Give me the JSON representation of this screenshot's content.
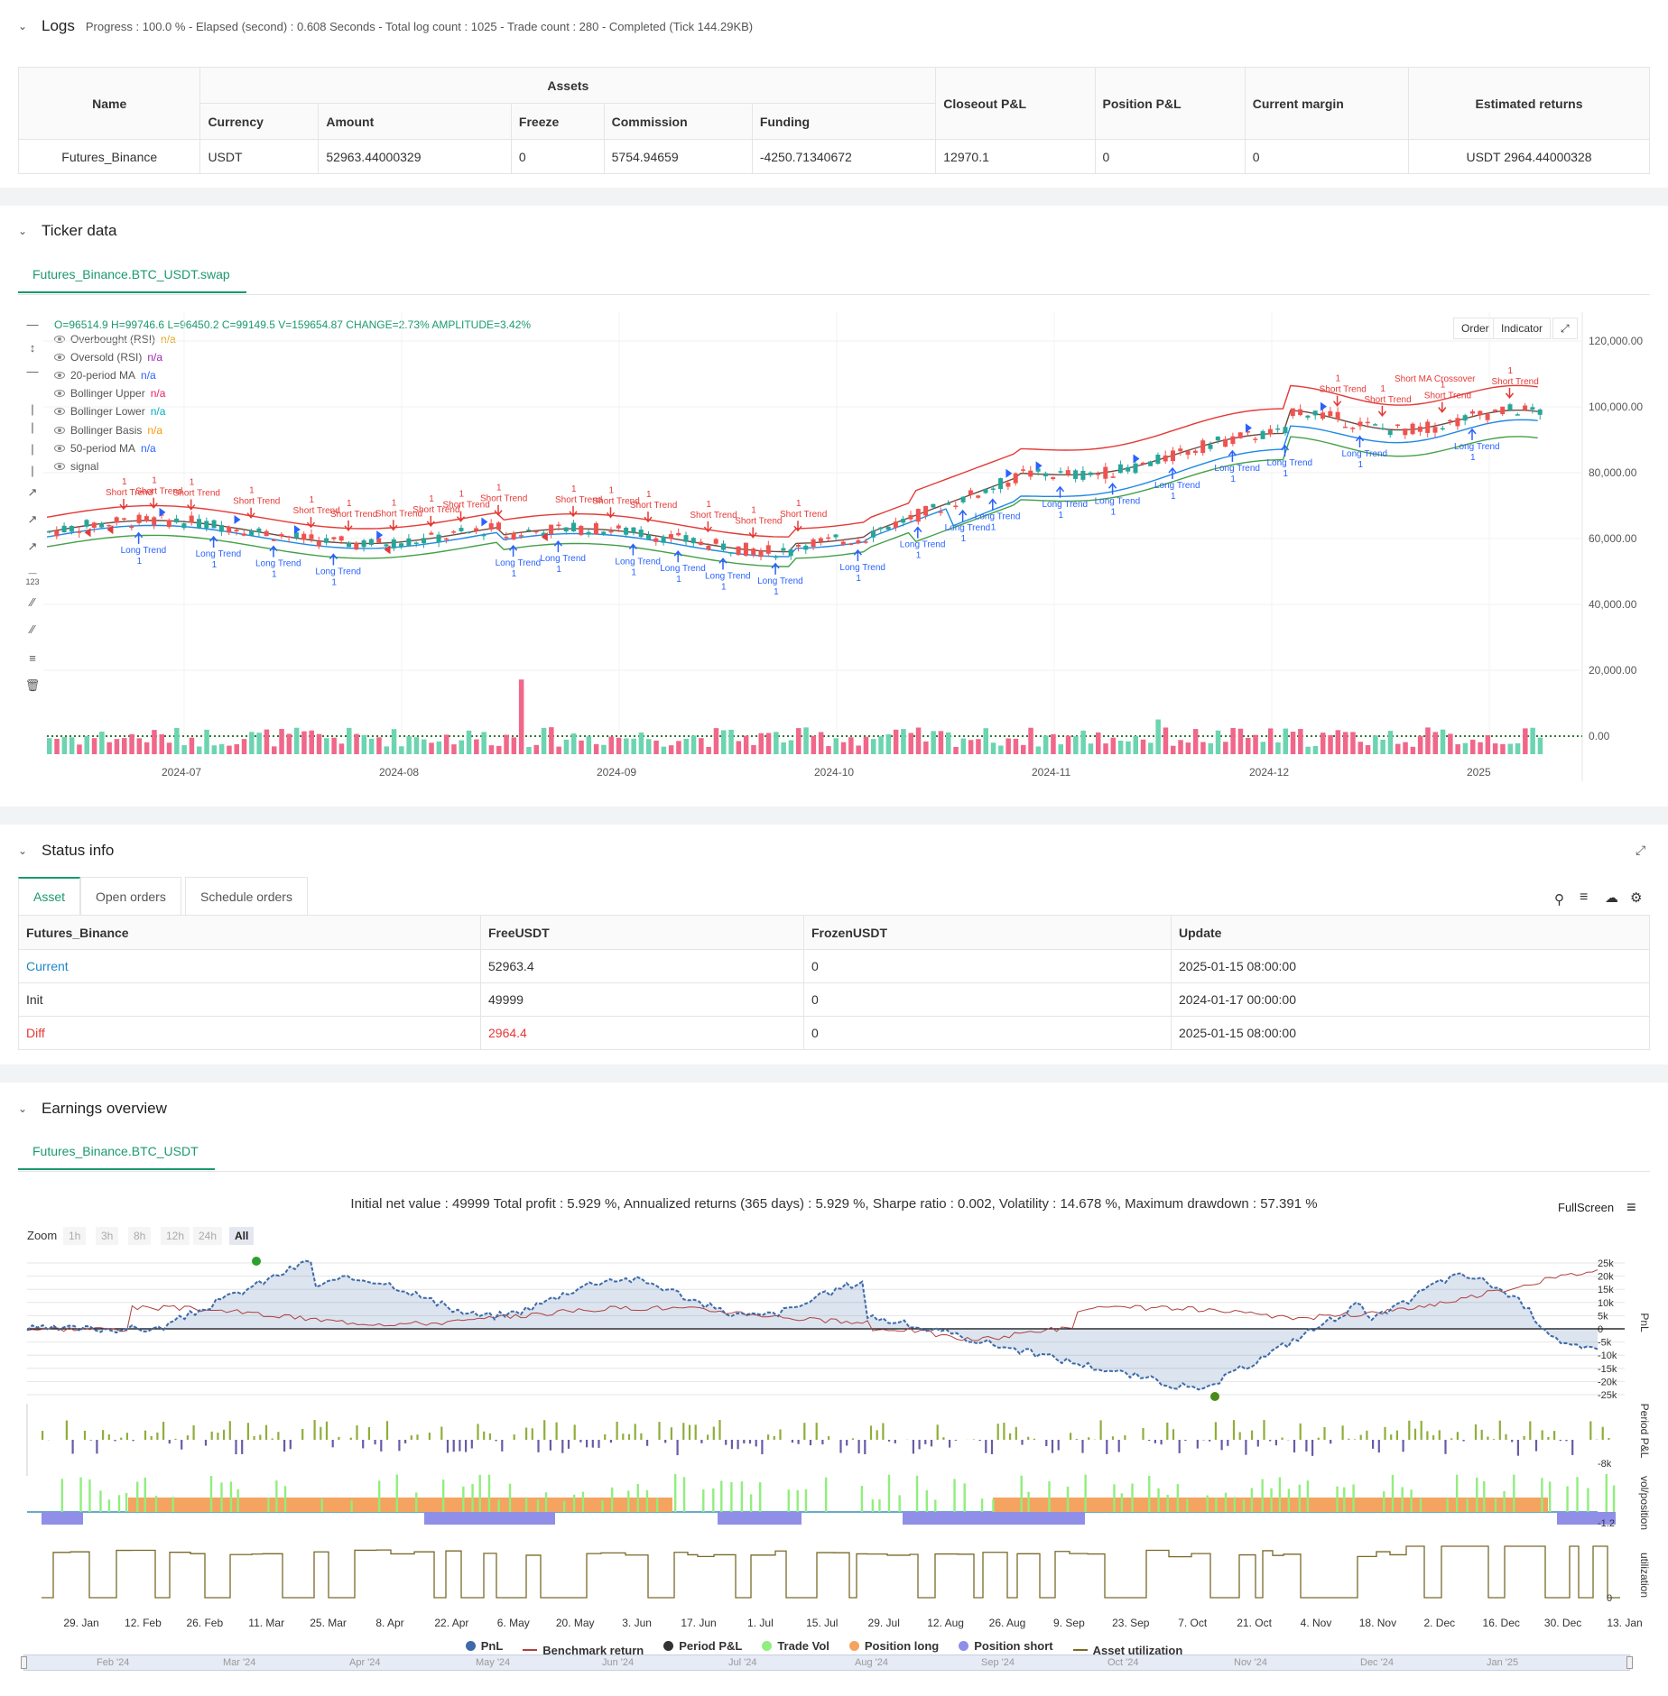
{
  "logs": {
    "title": "Logs",
    "summary": "Progress : 100.0 % - Elapsed (second) : 0.608  Seconds - Total log count : 1025 - Trade count : 280 - Completed (Tick 144.29KB)",
    "table": {
      "name_header": "Name",
      "assets_header": "Assets",
      "sub_headers": [
        "Currency",
        "Amount",
        "Freeze",
        "Commission",
        "Funding"
      ],
      "right_headers": [
        "Closeout P&L",
        "Position P&L",
        "Current margin",
        "Estimated returns"
      ],
      "row": [
        "Futures_Binance",
        "USDT",
        "52963.44000329",
        "0",
        "5754.94659",
        "-4250.71340672",
        "12970.1",
        "0",
        "0",
        "USDT 2964.44000328"
      ]
    }
  },
  "ticker": {
    "title": "Ticker data",
    "tab": "Futures_Binance.BTC_USDT.swap",
    "ohlc": "O=96514.9 H=99746.6 L=96450.2 C=99149.5 V=159654.87 CHANGE=2.73% AMPLITUDE=3.42%",
    "indicators": [
      {
        "label": "Overbought (RSI)",
        "value": "n/a",
        "color": "#e8a317"
      },
      {
        "label": "Oversold (RSI)",
        "value": "n/a",
        "color": "#9c27b0"
      },
      {
        "label": "20-period MA",
        "value": "n/a",
        "color": "#2962ff"
      },
      {
        "label": "Bollinger Upper",
        "value": "n/a",
        "color": "#e91e63"
      },
      {
        "label": "Bollinger Lower",
        "value": "n/a",
        "color": "#00acc1"
      },
      {
        "label": "Bollinger Basis",
        "value": "n/a",
        "color": "#ff9800"
      },
      {
        "label": "50-period MA",
        "value": "n/a",
        "color": "#2962ff"
      },
      {
        "label": "signal",
        "value": "",
        "color": "#888"
      }
    ],
    "buttons": {
      "order": "Order",
      "indicator": "Indicator"
    },
    "y_ticks": [
      "120,000.00",
      "100,000.00",
      "80,000.00",
      "60,000.00",
      "40,000.00",
      "20,000.00",
      "0.00"
    ],
    "x_ticks": [
      "2024-07",
      "2024-08",
      "2024-09",
      "2024-10",
      "2024-11",
      "2024-12",
      "2025"
    ],
    "annotation_long": "Long Trend",
    "annotation_short": "Short Trend",
    "annotation_cross": "Short MA Crossover",
    "annotation_num": "1",
    "colors": {
      "up": "#26a69a",
      "down": "#ef5350",
      "upper": "#e53935",
      "lower": "#43a047",
      "basis": "#6d4c41",
      "ma": "#1e88e5",
      "long": "#2962ff",
      "short": "#e53935"
    }
  },
  "status": {
    "title": "Status info",
    "tabs": [
      "Asset",
      "Open orders",
      "Schedule orders"
    ],
    "headers": [
      "Futures_Binance",
      "FreeUSDT",
      "FrozenUSDT",
      "Update"
    ],
    "rows": [
      {
        "label": "Current",
        "free": "52963.4",
        "frozen": "0",
        "update": "2025-01-15 08:00:00",
        "color": "#1e88c8"
      },
      {
        "label": "Init",
        "free": "49999",
        "frozen": "0",
        "update": "2024-01-17 00:00:00",
        "color": "#333333"
      },
      {
        "label": "Diff",
        "free": "2964.4",
        "frozen": "0",
        "update": "2025-01-15 08:00:00",
        "color": "#e53935"
      }
    ]
  },
  "earnings": {
    "title": "Earnings overview",
    "tab": "Futures_Binance.BTC_USDT",
    "summary": "Initial net value : 49999  Total profit : 5.929 %, Annualized returns (365 days) : 5.929 %, Sharpe ratio : 0.002, Volatility : 14.678 %, Maximum drawdown : 57.391 %",
    "fullscreen": "FullScreen",
    "zoom_label": "Zoom",
    "zoom_buttons": [
      "1h",
      "3h",
      "8h",
      "12h",
      "24h",
      "All"
    ],
    "pnl_ticks": [
      "25k",
      "20k",
      "15k",
      "10k",
      "5k",
      "0",
      "-5k",
      "-10k",
      "-15k",
      "-20k",
      "-25k"
    ],
    "period_tick": "-8k",
    "vol_tick": "-1.2",
    "util_tick": "0",
    "axis_labels": [
      "PnL",
      "Period P&L",
      "vol/position",
      "utilization"
    ],
    "x_ticks": [
      "29. Jan",
      "12. Feb",
      "26. Feb",
      "11. Mar",
      "25. Mar",
      "8. Apr",
      "22. Apr",
      "6. May",
      "20. May",
      "3. Jun",
      "17. Jun",
      "1. Jul",
      "15. Jul",
      "29. Jul",
      "12. Aug",
      "26. Aug",
      "9. Sep",
      "23. Sep",
      "7. Oct",
      "21. Oct",
      "4. Nov",
      "18. Nov",
      "2. Dec",
      "16. Dec",
      "30. Dec",
      "13. Jan"
    ],
    "nav_ticks": [
      "Feb '24",
      "Mar '24",
      "Apr '24",
      "May '24",
      "Jun '24",
      "Jul '24",
      "Aug '24",
      "Sep '24",
      "Oct '24",
      "Nov '24",
      "Dec '24",
      "Jan '25"
    ],
    "legend": [
      {
        "label": "PnL",
        "color": "#3d6aa8",
        "kind": "dot"
      },
      {
        "label": "Benchmark return",
        "color": "#b04040",
        "kind": "line"
      },
      {
        "label": "Period P&L",
        "color": "#333333",
        "kind": "dot"
      },
      {
        "label": "Trade Vol",
        "color": "#90ee7e",
        "kind": "dot"
      },
      {
        "label": "Position long",
        "color": "#f4a460",
        "kind": "dot"
      },
      {
        "label": "Position short",
        "color": "#8f8fe8",
        "kind": "dot"
      },
      {
        "label": "Asset utilization",
        "color": "#7a6a2a",
        "kind": "line"
      }
    ]
  }
}
